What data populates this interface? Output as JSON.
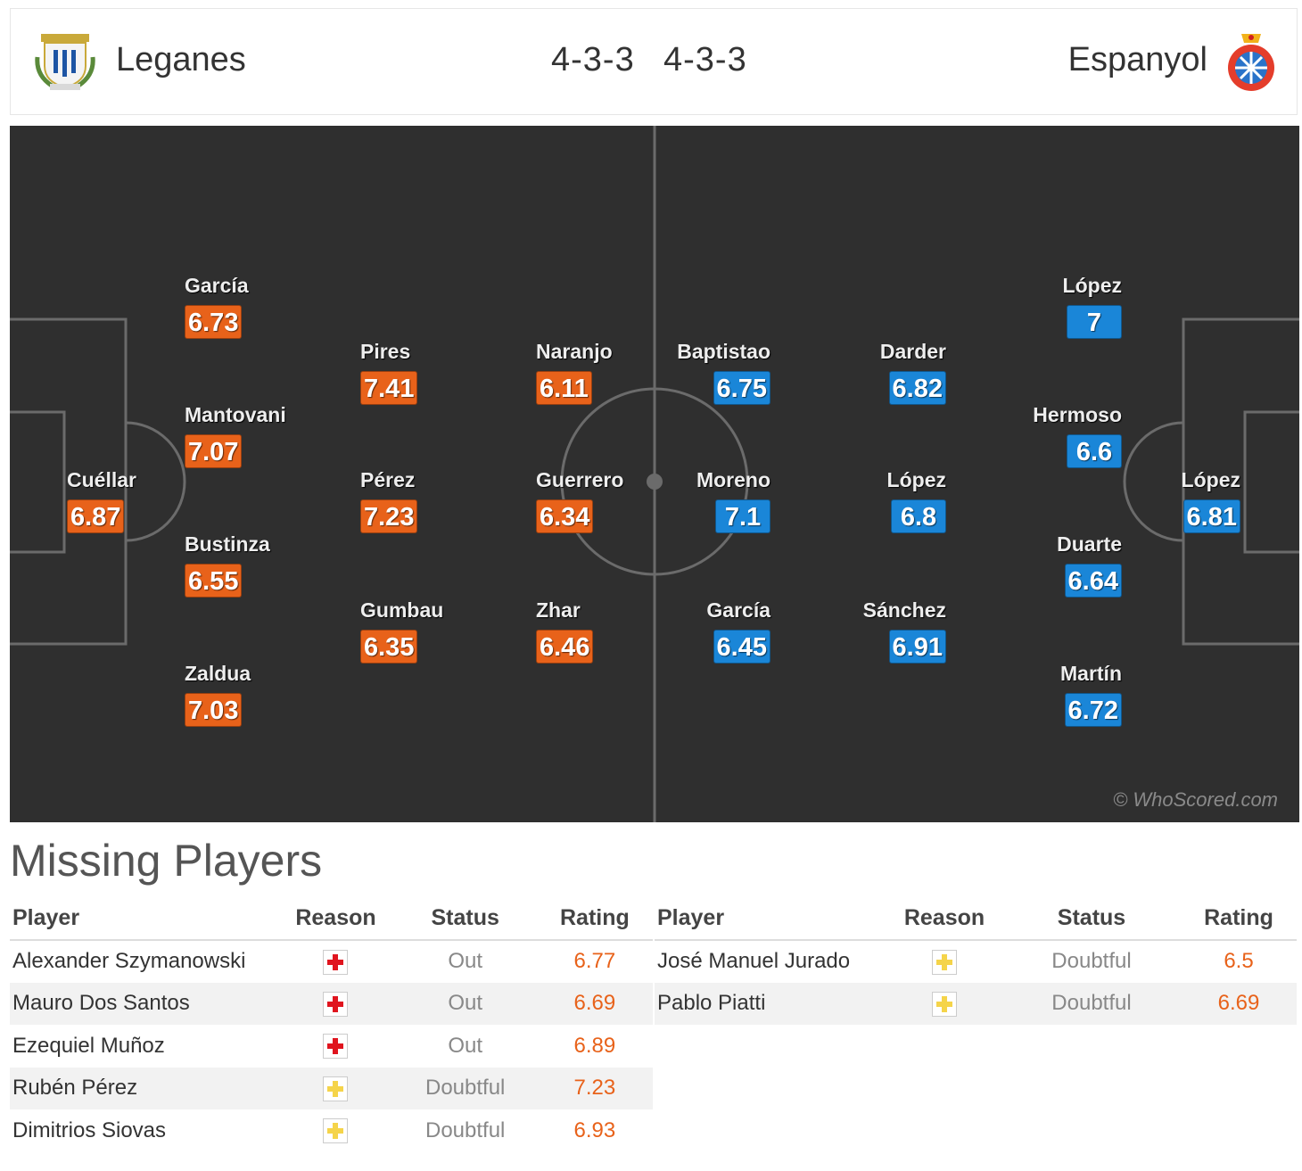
{
  "header": {
    "home_team": "Leganes",
    "away_team": "Espanyol",
    "home_formation": "4-3-3",
    "away_formation": "4-3-3"
  },
  "pitch": {
    "watermark": "© WhoScored.com",
    "home_color": "#e8621a",
    "away_color": "#1a86d8",
    "home_players": [
      {
        "name": "Cuéllar",
        "rating": "6.87"
      },
      {
        "name": "García",
        "rating": "6.73"
      },
      {
        "name": "Mantovani",
        "rating": "7.07"
      },
      {
        "name": "Bustinza",
        "rating": "6.55"
      },
      {
        "name": "Zaldua",
        "rating": "7.03"
      },
      {
        "name": "Pires",
        "rating": "7.41"
      },
      {
        "name": "Pérez",
        "rating": "7.23"
      },
      {
        "name": "Gumbau",
        "rating": "6.35"
      },
      {
        "name": "Naranjo",
        "rating": "6.11"
      },
      {
        "name": "Guerrero",
        "rating": "6.34"
      },
      {
        "name": "Zhar",
        "rating": "6.46"
      }
    ],
    "away_players": [
      {
        "name": "Baptistao",
        "rating": "6.75"
      },
      {
        "name": "Moreno",
        "rating": "7.1"
      },
      {
        "name": "García",
        "rating": "6.45"
      },
      {
        "name": "Darder",
        "rating": "6.82"
      },
      {
        "name": "López",
        "rating": "6.8"
      },
      {
        "name": "Sánchez",
        "rating": "6.91"
      },
      {
        "name": "López",
        "rating": "7"
      },
      {
        "name": "Hermoso",
        "rating": "6.6"
      },
      {
        "name": "Duarte",
        "rating": "6.64"
      },
      {
        "name": "Martín",
        "rating": "6.72"
      },
      {
        "name": "López",
        "rating": "6.81"
      }
    ]
  },
  "missing": {
    "title": "Missing Players",
    "columns": [
      "Player",
      "Reason",
      "Status",
      "Rating"
    ],
    "home_rows": [
      {
        "player": "Alexander Szymanowski",
        "reason_icon": "injury-icon",
        "status": "Out",
        "rating": "6.77"
      },
      {
        "player": "Mauro Dos Santos",
        "reason_icon": "injury-icon",
        "status": "Out",
        "rating": "6.69"
      },
      {
        "player": "Ezequiel Muñoz",
        "reason_icon": "injury-icon",
        "status": "Out",
        "rating": "6.89"
      },
      {
        "player": "Rubén Pérez",
        "reason_icon": "doubtful-icon",
        "status": "Doubtful",
        "rating": "7.23"
      },
      {
        "player": "Dimitrios Siovas",
        "reason_icon": "doubtful-icon",
        "status": "Doubtful",
        "rating": "6.93"
      }
    ],
    "away_rows": [
      {
        "player": "José Manuel Jurado",
        "reason_icon": "doubtful-icon",
        "status": "Doubtful",
        "rating": "6.5"
      },
      {
        "player": "Pablo Piatti",
        "reason_icon": "doubtful-icon",
        "status": "Doubtful",
        "rating": "6.69"
      }
    ],
    "injury_color": "#e0141e",
    "doubtful_color": "#f5d44a"
  }
}
